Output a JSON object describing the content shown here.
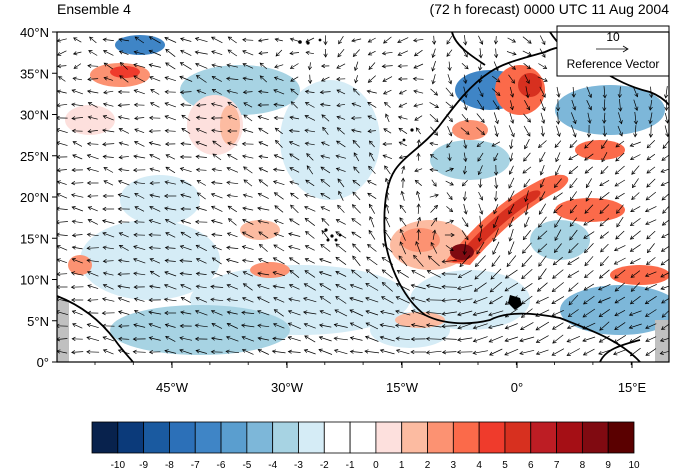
{
  "title_left": "Ensemble 4",
  "title_right": "(72 h forecast) 0000 UTC 11 Aug 2004",
  "reference_vector": {
    "magnitude": "10",
    "label": "Reference Vector"
  },
  "lat_labels": [
    "40°N",
    "35°N",
    "30°N",
    "25°N",
    "20°N",
    "15°N",
    "10°N",
    "5°N",
    "0°"
  ],
  "lon_labels": [
    "45°W",
    "30°W",
    "15°W",
    "0°",
    "15°E"
  ],
  "colorbar": {
    "labels": [
      "-10",
      "-9",
      "-8",
      "-7",
      "-6",
      "-5",
      "-4",
      "-3",
      "-2",
      "-1",
      "0",
      "1",
      "2",
      "3",
      "4",
      "5",
      "6",
      "7",
      "8",
      "9",
      "10"
    ],
    "colors": [
      "#08224d",
      "#0b3a7a",
      "#1a5aa0",
      "#2c70b8",
      "#3f85c6",
      "#5a9ecf",
      "#7db7d9",
      "#a7d3e3",
      "#d5ecf6",
      "#ffffff",
      "#ffffff",
      "#fde0dd",
      "#fcbba1",
      "#fc9272",
      "#fb6a4a",
      "#ef3b2c",
      "#d7301f",
      "#bd1d24",
      "#a50f15",
      "#800a11",
      "#5a0000"
    ]
  },
  "colors": {
    "land_outline": "#000000",
    "missing": "#c0c0c0"
  }
}
